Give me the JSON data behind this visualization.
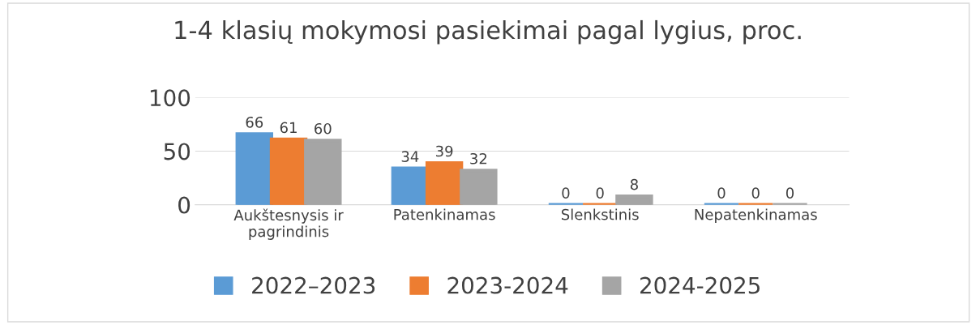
{
  "chart_data": {
    "type": "bar",
    "title": "1-4 klasių mokymosi pasiekimai pagal lygius, proc.",
    "categories": [
      "Aukštesnysis ir\npagrindinis",
      "Patenkinamas",
      "Slenkstinis",
      "Nepatenkinamas"
    ],
    "series": [
      {
        "name": "2022–2023",
        "color": "#5b9bd5",
        "values": [
          66,
          34,
          0,
          0
        ]
      },
      {
        "name": "2023-2024",
        "color": "#ed7d31",
        "values": [
          61,
          39,
          0,
          0
        ]
      },
      {
        "name": "2024-2025",
        "color": "#a5a5a5",
        "values": [
          60,
          32,
          8,
          0
        ]
      }
    ],
    "ylim": [
      0,
      100
    ],
    "yticks": [
      0,
      50,
      100
    ],
    "grid": "y",
    "data_labels": true,
    "legend": "bottom"
  }
}
